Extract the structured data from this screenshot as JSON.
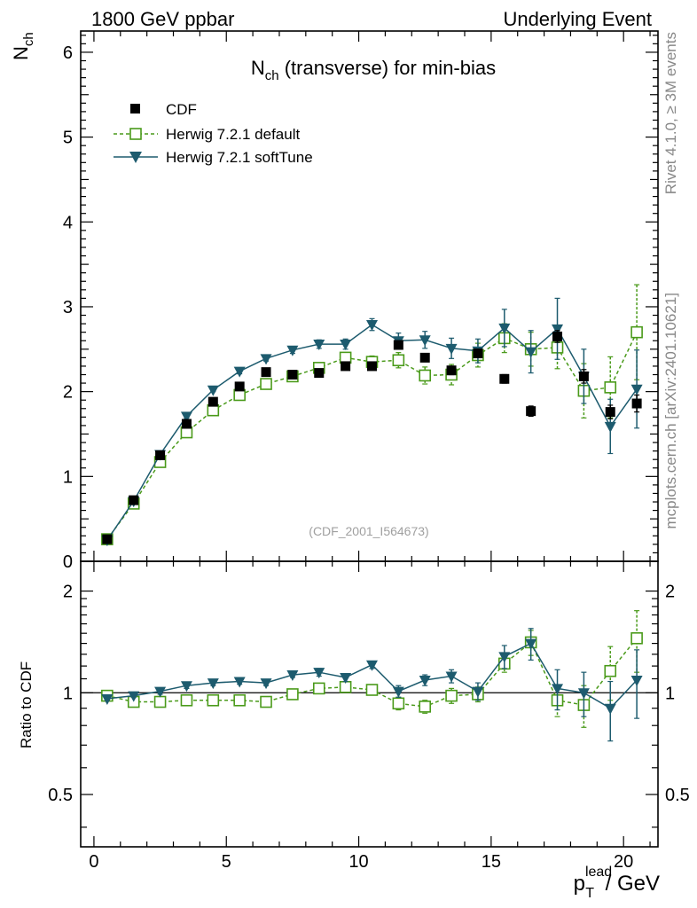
{
  "header": {
    "left": "1800 GeV ppbar",
    "right": "Underlying Event"
  },
  "side_text": {
    "rivet": "Rivet 4.1.0, ≥ 3M events",
    "mcplots": "mcplots.cern.ch [arXiv:2401.10621]"
  },
  "chart_data": {
    "type": "scatter",
    "title_main": "N",
    "title_sub": "ch",
    "title_rest": " (transverse) for min-bias",
    "analysis_tag": "(CDF_2001_I564673)",
    "ylabel_main": "N",
    "ylabel_sub": "ch",
    "ratio_ylabel": "Ratio to CDF",
    "xlabel_main": "p",
    "xlabel_sub": "T",
    "xlabel_sup": "lead",
    "xlabel_rest": " / GeV",
    "xlim": [
      -0.5,
      21.3
    ],
    "ylim": [
      0,
      6.25
    ],
    "ratio_ylim": [
      0.35,
      2.45
    ],
    "x_ticks": [
      0,
      5,
      10,
      15,
      20
    ],
    "x_tick_labels": [
      "0",
      "5",
      "10",
      "15",
      "20"
    ],
    "y_ticks": [
      0,
      1,
      2,
      3,
      4,
      5,
      6
    ],
    "y_tick_labels": [
      "0",
      "1",
      "2",
      "3",
      "4",
      "5",
      "6"
    ],
    "ratio_ticks": [
      0.5,
      1,
      2
    ],
    "ratio_tick_labels": [
      "0.5",
      "1",
      "2"
    ],
    "x": [
      0.5,
      1.5,
      2.5,
      3.5,
      4.5,
      5.5,
      6.5,
      7.5,
      8.5,
      9.5,
      10.5,
      11.5,
      12.5,
      13.5,
      14.5,
      15.5,
      16.5,
      17.5,
      18.5,
      19.5,
      20.5
    ],
    "series": [
      {
        "name": "CDF",
        "style": "data",
        "color": "#000000",
        "values": [
          0.26,
          0.72,
          1.25,
          1.62,
          1.88,
          2.06,
          2.23,
          2.2,
          2.22,
          2.3,
          2.3,
          2.55,
          2.4,
          2.25,
          2.45,
          2.15,
          1.77,
          2.65,
          2.18,
          1.76,
          1.86
        ],
        "errors": [
          0.01,
          0.01,
          0.02,
          0.02,
          0.02,
          0.02,
          0.02,
          0.02,
          0.03,
          0.03,
          0.03,
          0.04,
          0.04,
          0.05,
          0.05,
          0.05,
          0.06,
          0.07,
          0.08,
          0.08,
          0.1
        ]
      },
      {
        "name": "Herwig 7.2.1 default",
        "style": "dashed-open-square",
        "color": "#4a9a1a",
        "values": [
          0.26,
          0.68,
          1.17,
          1.52,
          1.78,
          1.96,
          2.09,
          2.18,
          2.28,
          2.4,
          2.35,
          2.37,
          2.19,
          2.2,
          2.43,
          2.63,
          2.5,
          2.52,
          2.01,
          2.05,
          2.7
        ],
        "errors": [
          0.01,
          0.01,
          0.02,
          0.02,
          0.02,
          0.03,
          0.03,
          0.04,
          0.05,
          0.06,
          0.07,
          0.09,
          0.1,
          0.12,
          0.14,
          0.17,
          0.2,
          0.25,
          0.32,
          0.36,
          0.56
        ],
        "ratio": [
          0.98,
          0.94,
          0.94,
          0.95,
          0.95,
          0.95,
          0.94,
          0.99,
          1.03,
          1.04,
          1.02,
          0.93,
          0.91,
          0.98,
          0.99,
          1.22,
          1.41,
          0.95,
          0.92,
          1.16,
          1.45
        ],
        "ratio_errors": [
          0.01,
          0.01,
          0.02,
          0.02,
          0.02,
          0.02,
          0.02,
          0.02,
          0.03,
          0.03,
          0.03,
          0.04,
          0.04,
          0.05,
          0.05,
          0.07,
          0.12,
          0.1,
          0.13,
          0.21,
          0.3
        ]
      },
      {
        "name": "Herwig 7.2.1 softTune",
        "style": "solid-filled-triangle",
        "color": "#1d5b6e",
        "values": [
          0.25,
          0.71,
          1.26,
          1.71,
          2.02,
          2.24,
          2.39,
          2.49,
          2.56,
          2.56,
          2.79,
          2.6,
          2.61,
          2.51,
          2.48,
          2.75,
          2.47,
          2.74,
          2.18,
          1.59,
          2.03
        ],
        "errors": [
          0.01,
          0.01,
          0.02,
          0.02,
          0.02,
          0.03,
          0.03,
          0.04,
          0.05,
          0.06,
          0.07,
          0.09,
          0.1,
          0.12,
          0.14,
          0.22,
          0.25,
          0.36,
          0.32,
          0.32,
          0.46
        ],
        "ratio": [
          0.96,
          0.98,
          1.01,
          1.05,
          1.07,
          1.08,
          1.07,
          1.13,
          1.15,
          1.11,
          1.21,
          1.01,
          1.09,
          1.12,
          1.01,
          1.28,
          1.4,
          1.03,
          1.0,
          0.9,
          1.09
        ],
        "ratio_errors": [
          0.01,
          0.01,
          0.02,
          0.02,
          0.02,
          0.02,
          0.02,
          0.02,
          0.03,
          0.03,
          0.03,
          0.04,
          0.04,
          0.05,
          0.06,
          0.1,
          0.15,
          0.14,
          0.15,
          0.18,
          0.25
        ]
      }
    ],
    "legend_position": "top-left"
  }
}
